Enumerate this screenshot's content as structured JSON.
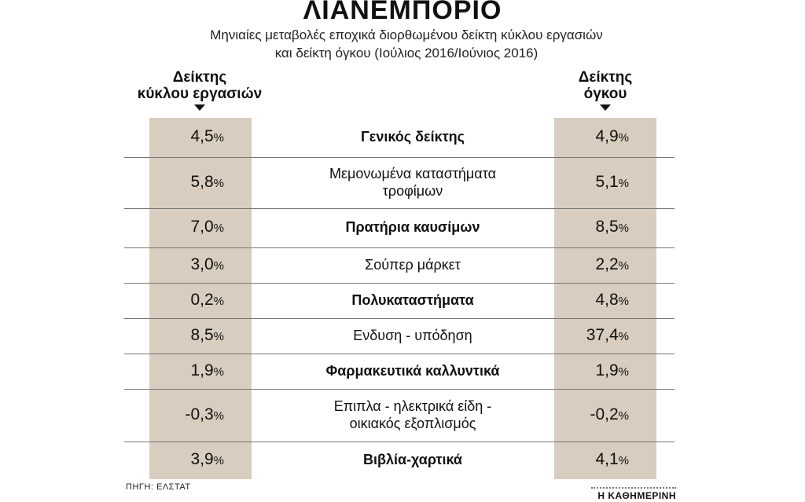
{
  "header": {
    "title": "ΛΙΑΝΕΜΠΟΡΙΟ",
    "subtitle_line1": "Μηνιαίες μεταβολές εποχικά διορθωμένου δείκτη κύκλου εργασιών",
    "subtitle_line2": "και δείκτη όγκου (Ιούλιος 2016/Ιούνιος 2016)"
  },
  "columns": {
    "left_header_line1": "Δείκτης",
    "left_header_line2": "κύκλου εργασιών",
    "right_header_line1": "Δείκτης",
    "right_header_line2": "όγκου"
  },
  "colors": {
    "band": "#d8cdbe",
    "separator": "#777777"
  },
  "chart_data": {
    "type": "table",
    "title": "ΛΙΑΝΕΜΠΟΡΙΟ",
    "columns": [
      "Δείκτης κύκλου εργασιών",
      "",
      "Δείκτης όγκου"
    ],
    "unit": "%",
    "rows": [
      {
        "label_lines": [
          "Γενικός δείκτης"
        ],
        "bold": true,
        "turnover": "4,5",
        "volume": "4,9"
      },
      {
        "label_lines": [
          "Μεμονωμένα καταστήματα",
          "τροφίμων"
        ],
        "bold": false,
        "turnover": "5,8",
        "volume": "5,1"
      },
      {
        "label_lines": [
          "Πρατήρια καυσίμων"
        ],
        "bold": true,
        "turnover": "7,0",
        "volume": "8,5"
      },
      {
        "label_lines": [
          "Σούπερ μάρκετ"
        ],
        "bold": false,
        "turnover": "3,0",
        "volume": "2,2"
      },
      {
        "label_lines": [
          "Πολυκαταστήματα"
        ],
        "bold": true,
        "turnover": "0,2",
        "volume": "4,8"
      },
      {
        "label_lines": [
          "Ενδυση - υπόδηση"
        ],
        "bold": false,
        "turnover": "8,5",
        "volume": "37,4"
      },
      {
        "label_lines": [
          "Φαρμακευτικά καλλυντικά"
        ],
        "bold": true,
        "turnover": "1,9",
        "volume": "1,9"
      },
      {
        "label_lines": [
          "Επιπλα - ηλεκτρικά είδη -",
          "οικιακός εξοπλισμός"
        ],
        "bold": false,
        "turnover": "-0,3",
        "volume": "-0,2"
      },
      {
        "label_lines": [
          "Βιβλία-χαρτικά"
        ],
        "bold": true,
        "turnover": "3,9",
        "volume": "4,1"
      }
    ]
  },
  "footer": {
    "source": "ΠΗΓΗ: ΕΛΣΤΑΤ",
    "brand": "Η ΚΑΘΗΜΕΡΙΝΗ"
  }
}
